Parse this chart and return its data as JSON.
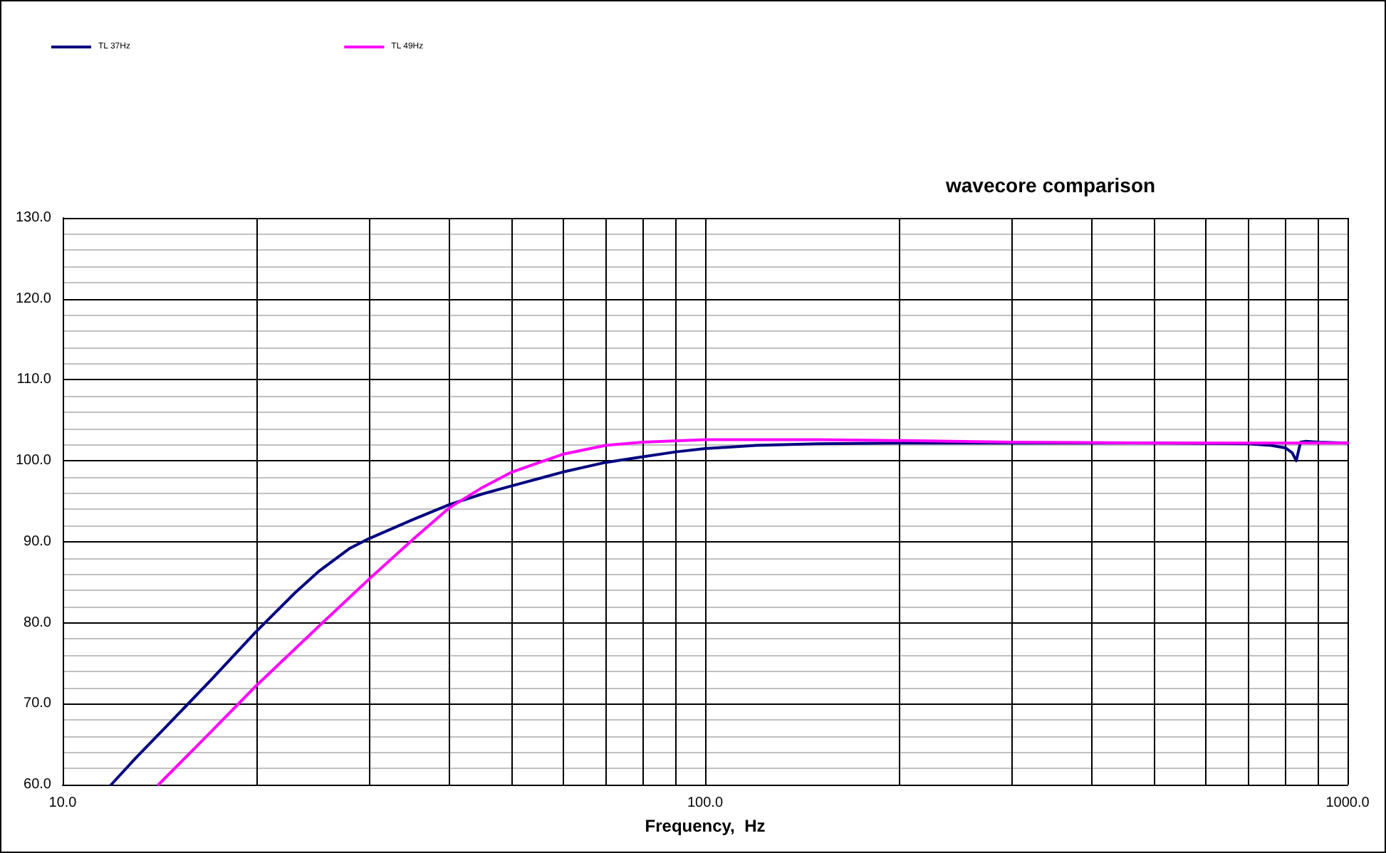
{
  "chart_data": {
    "type": "line",
    "title": "wavecore comparison",
    "xlabel": "Frequency,  Hz",
    "log": "x",
    "grid": true,
    "legend": "top left",
    "marker": "none",
    "line_style": "solid",
    "xlim": [
      10,
      1000
    ],
    "ylim": [
      60,
      130
    ],
    "xticks": [
      {
        "value": 10,
        "label": "10.0"
      },
      {
        "value": 20,
        "label": null
      },
      {
        "value": 30,
        "label": null
      },
      {
        "value": 40,
        "label": null
      },
      {
        "value": 50,
        "label": null
      },
      {
        "value": 60,
        "label": null
      },
      {
        "value": 70,
        "label": null
      },
      {
        "value": 80,
        "label": null
      },
      {
        "value": 90,
        "label": null
      },
      {
        "value": 100,
        "label": "100.0"
      },
      {
        "value": 200,
        "label": null
      },
      {
        "value": 300,
        "label": null
      },
      {
        "value": 400,
        "label": null
      },
      {
        "value": 500,
        "label": null
      },
      {
        "value": 600,
        "label": null
      },
      {
        "value": 700,
        "label": null
      },
      {
        "value": 800,
        "label": null
      },
      {
        "value": 900,
        "label": null
      },
      {
        "value": 1000,
        "label": "1000.0"
      }
    ],
    "yticks": [
      {
        "value": 60,
        "label": "60.0"
      },
      {
        "value": 62,
        "label": null
      },
      {
        "value": 64,
        "label": null
      },
      {
        "value": 66,
        "label": null
      },
      {
        "value": 68,
        "label": null
      },
      {
        "value": 70,
        "label": "70.0"
      },
      {
        "value": 72,
        "label": null
      },
      {
        "value": 74,
        "label": null
      },
      {
        "value": 76,
        "label": null
      },
      {
        "value": 78,
        "label": null
      },
      {
        "value": 80,
        "label": "80.0"
      },
      {
        "value": 82,
        "label": null
      },
      {
        "value": 84,
        "label": null
      },
      {
        "value": 86,
        "label": null
      },
      {
        "value": 88,
        "label": null
      },
      {
        "value": 90,
        "label": "90.0"
      },
      {
        "value": 92,
        "label": null
      },
      {
        "value": 94,
        "label": null
      },
      {
        "value": 96,
        "label": null
      },
      {
        "value": 98,
        "label": null
      },
      {
        "value": 100,
        "label": "100.0"
      },
      {
        "value": 102,
        "label": null
      },
      {
        "value": 104,
        "label": null
      },
      {
        "value": 106,
        "label": null
      },
      {
        "value": 108,
        "label": null
      },
      {
        "value": 110,
        "label": "110.0"
      },
      {
        "value": 112,
        "label": null
      },
      {
        "value": 114,
        "label": null
      },
      {
        "value": 116,
        "label": null
      },
      {
        "value": 118,
        "label": null
      },
      {
        "value": 120,
        "label": "120.0"
      },
      {
        "value": 122,
        "label": null
      },
      {
        "value": 124,
        "label": null
      },
      {
        "value": 126,
        "label": null
      },
      {
        "value": 128,
        "label": null
      },
      {
        "value": 130,
        "label": "130.0"
      }
    ],
    "series": [
      {
        "name": "TL 37Hz",
        "color": "#000080",
        "x": [
          11.9,
          13,
          15,
          17,
          20,
          23,
          25,
          28,
          30,
          35,
          40,
          45,
          50,
          60,
          70,
          80,
          90,
          100,
          120,
          150,
          200,
          300,
          500,
          700,
          760,
          800,
          820,
          832,
          845,
          860,
          900,
          1000
        ],
        "values": [
          60,
          63.3,
          68.4,
          72.9,
          78.9,
          83.7,
          86.3,
          89.2,
          90.4,
          92.7,
          94.6,
          95.9,
          96.9,
          98.6,
          99.8,
          100.5,
          101.1,
          101.5,
          101.9,
          102.1,
          102.2,
          102.2,
          102.2,
          102.1,
          101.9,
          101.6,
          101,
          100,
          102.3,
          102.4,
          102.3,
          102.2
        ]
      },
      {
        "name": "TL 49Hz",
        "color": "#ff00ff",
        "x": [
          14.1,
          17,
          20,
          25,
          30,
          35,
          40,
          45,
          50,
          60,
          70,
          80,
          100,
          150,
          200,
          300,
          500,
          1000
        ],
        "values": [
          60,
          66.5,
          72.2,
          79.5,
          85.4,
          90.2,
          94.2,
          96.7,
          98.6,
          100.8,
          101.9,
          102.3,
          102.6,
          102.6,
          102.5,
          102.3,
          102.2,
          102.2
        ]
      }
    ]
  }
}
